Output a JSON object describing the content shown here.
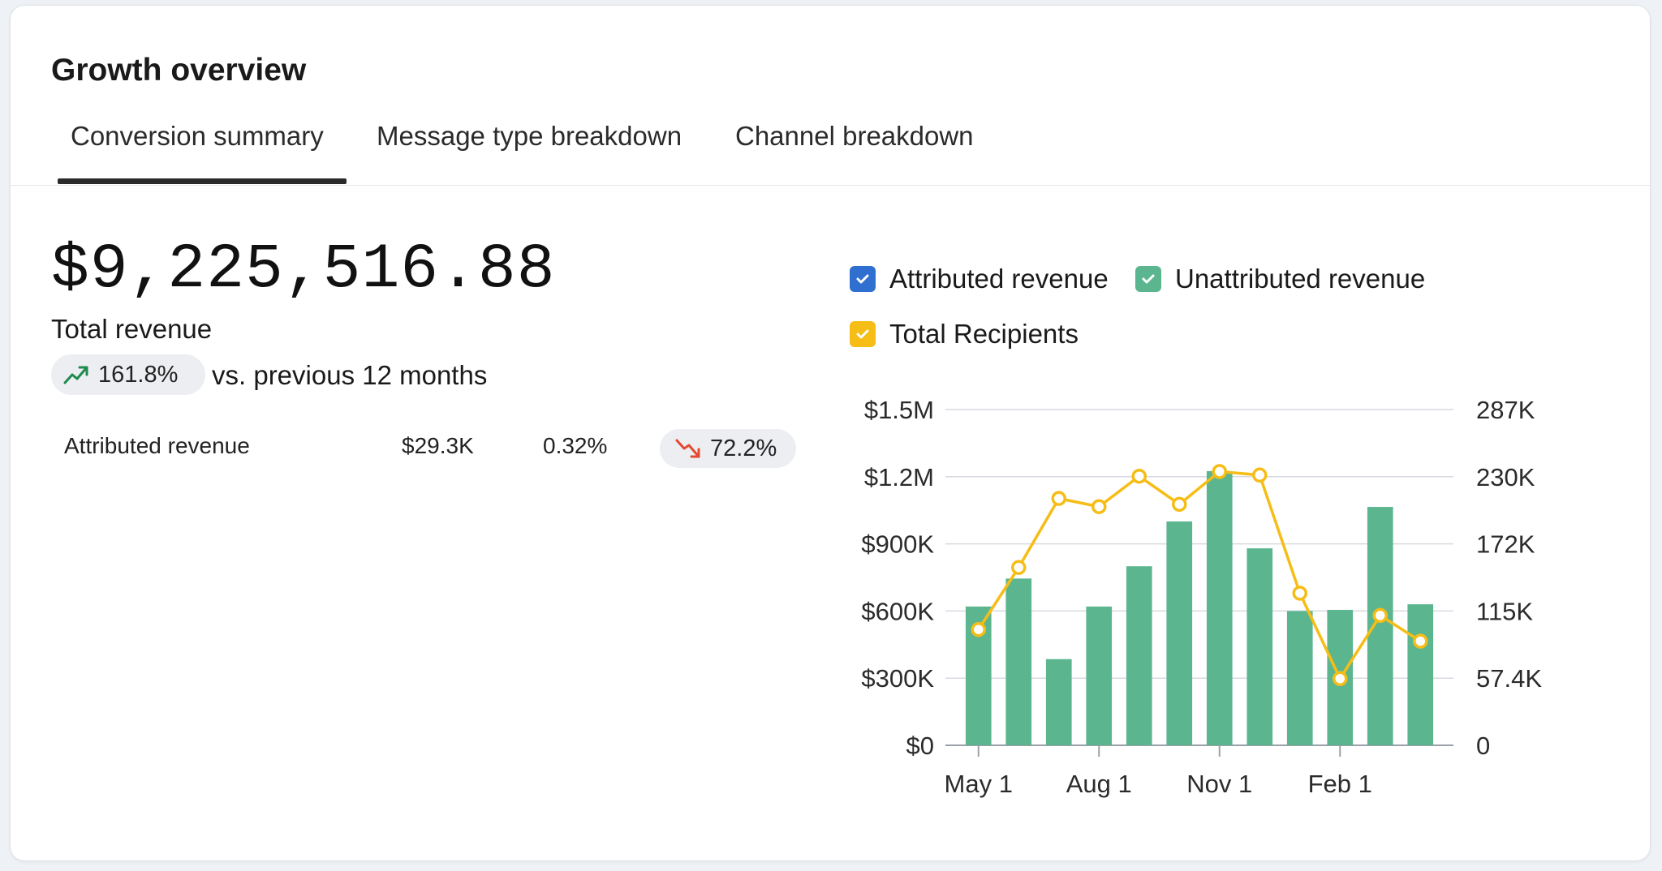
{
  "card": {
    "title": "Growth overview",
    "tabs": [
      {
        "label": "Conversion summary",
        "active": true
      },
      {
        "label": "Message type breakdown",
        "active": false
      },
      {
        "label": "Channel breakdown",
        "active": false
      }
    ]
  },
  "summary": {
    "total_value": "$9,225,516.88",
    "total_label": "Total revenue",
    "change_value": "161.8%",
    "change_direction": "up",
    "change_text": "vs. previous 12 months"
  },
  "breakdown": [
    {
      "label": "Attributed revenue",
      "value": "$29.3K",
      "percent": "0.32%",
      "change": "72.2%",
      "direction": "down"
    }
  ],
  "colors": {
    "attributed": "#2f6fd0",
    "unattributed": "#5bb68f",
    "recipients": "#f6bd16",
    "up": "#1e8a4c",
    "down": "#e4492f"
  },
  "legend": [
    {
      "label": "Attributed revenue",
      "color": "#2f6fd0",
      "checked": true
    },
    {
      "label": "Unattributed revenue",
      "color": "#5bb68f",
      "checked": true
    },
    {
      "label": "Total Recipients",
      "color": "#f6bd16",
      "checked": true
    }
  ],
  "chart_data": {
    "type": "bar",
    "title": "",
    "xlabel": "",
    "ylabel": "",
    "x_ticks": [
      "May 1",
      "Aug 1",
      "Nov 1",
      "Feb 1"
    ],
    "x_tick_indices": [
      0,
      3,
      6,
      9
    ],
    "y_left_ticks": [
      "$0",
      "$300K",
      "$600K",
      "$900K",
      "$1.2M",
      "$1.5M"
    ],
    "y_left_lim": [
      0,
      1500000
    ],
    "y_right_ticks": [
      "0",
      "57.4K",
      "115K",
      "172K",
      "230K",
      "287K"
    ],
    "y_right_lim": [
      0,
      287000
    ],
    "grid": true,
    "legend_position": "top",
    "series": [
      {
        "name": "Unattributed revenue",
        "type": "bar",
        "axis": "left",
        "values": [
          620000,
          745000,
          385000,
          620000,
          800000,
          1000000,
          1225000,
          880000,
          600000,
          605000,
          1065000,
          630000
        ]
      },
      {
        "name": "Total Recipients",
        "type": "line",
        "axis": "right",
        "values": [
          99000,
          152000,
          211000,
          204000,
          230000,
          206000,
          234000,
          231000,
          130000,
          57000,
          111000,
          89000
        ]
      }
    ]
  }
}
